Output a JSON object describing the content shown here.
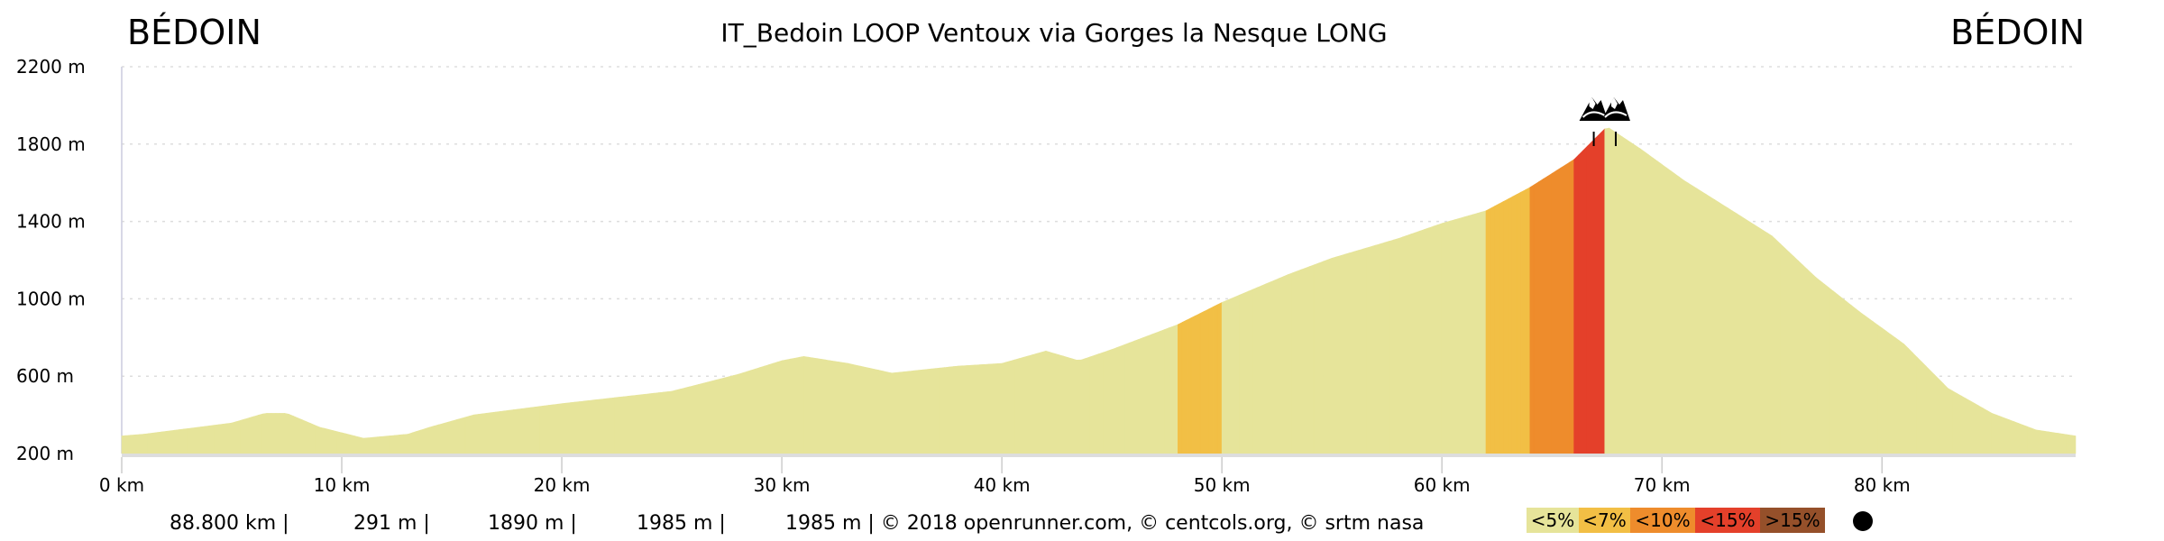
{
  "header": {
    "title": "IT_Bedoin LOOP Ventoux via Gorges la Nesque LONG",
    "start_label": "BÉDOIN",
    "end_label": "BÉDOIN"
  },
  "stats": [
    "88.800 km |",
    "291 m |",
    "1890 m |",
    "1985 m |",
    "1985 m | © 2018 openrunner.com, © centcols.org, © srtm nasa"
  ],
  "legend": [
    {
      "label": "<5%",
      "color": "#e6e49a"
    },
    {
      "label": "<7%",
      "color": "#f2bf45"
    },
    {
      "label": "<10%",
      "color": "#ee8c2c"
    },
    {
      "label": "<15%",
      "color": "#e4402a"
    },
    {
      "label": ">15%",
      "color": "#95502a"
    }
  ],
  "chart_data": {
    "type": "area",
    "title": "IT_Bedoin LOOP Ventoux via Gorges la Nesque LONG",
    "xlabel": "",
    "ylabel": "",
    "xlim": [
      0,
      88.8
    ],
    "ylim": [
      200,
      2200
    ],
    "x_ticks": [
      "0 km",
      "10 km",
      "20 km",
      "30 km",
      "40 km",
      "50 km",
      "60 km",
      "70 km",
      "80 km"
    ],
    "y_ticks": [
      "2200 m",
      "1800 m",
      "1400 m",
      "1000 m",
      "600 m",
      "200 m"
    ],
    "grid": true,
    "fill": "colored by gradient class",
    "summit_markers_km": [
      66.9,
      67.9
    ],
    "profile": [
      [
        0,
        291
      ],
      [
        1,
        300
      ],
      [
        5,
        358
      ],
      [
        6.5,
        408
      ],
      [
        7.5,
        408
      ],
      [
        9,
        336
      ],
      [
        11,
        279
      ],
      [
        13,
        300
      ],
      [
        14,
        336
      ],
      [
        16,
        400
      ],
      [
        20,
        458
      ],
      [
        25,
        522
      ],
      [
        28,
        609
      ],
      [
        30,
        680
      ],
      [
        31,
        702
      ],
      [
        33,
        666
      ],
      [
        35,
        616
      ],
      [
        38,
        652
      ],
      [
        40,
        666
      ],
      [
        42,
        730
      ],
      [
        43.5,
        680
      ],
      [
        45,
        738
      ],
      [
        48,
        867
      ],
      [
        50,
        981
      ],
      [
        53,
        1125
      ],
      [
        55,
        1210
      ],
      [
        58,
        1311
      ],
      [
        60,
        1390
      ],
      [
        62,
        1455
      ],
      [
        64,
        1576
      ],
      [
        66,
        1720
      ],
      [
        67.5,
        1890
      ],
      [
        69,
        1777
      ],
      [
        71,
        1612
      ],
      [
        73,
        1469
      ],
      [
        75,
        1325
      ],
      [
        77,
        1110
      ],
      [
        79,
        931
      ],
      [
        81,
        766
      ],
      [
        83,
        537
      ],
      [
        85,
        408
      ],
      [
        87,
        322
      ],
      [
        88.8,
        291
      ]
    ]
  }
}
